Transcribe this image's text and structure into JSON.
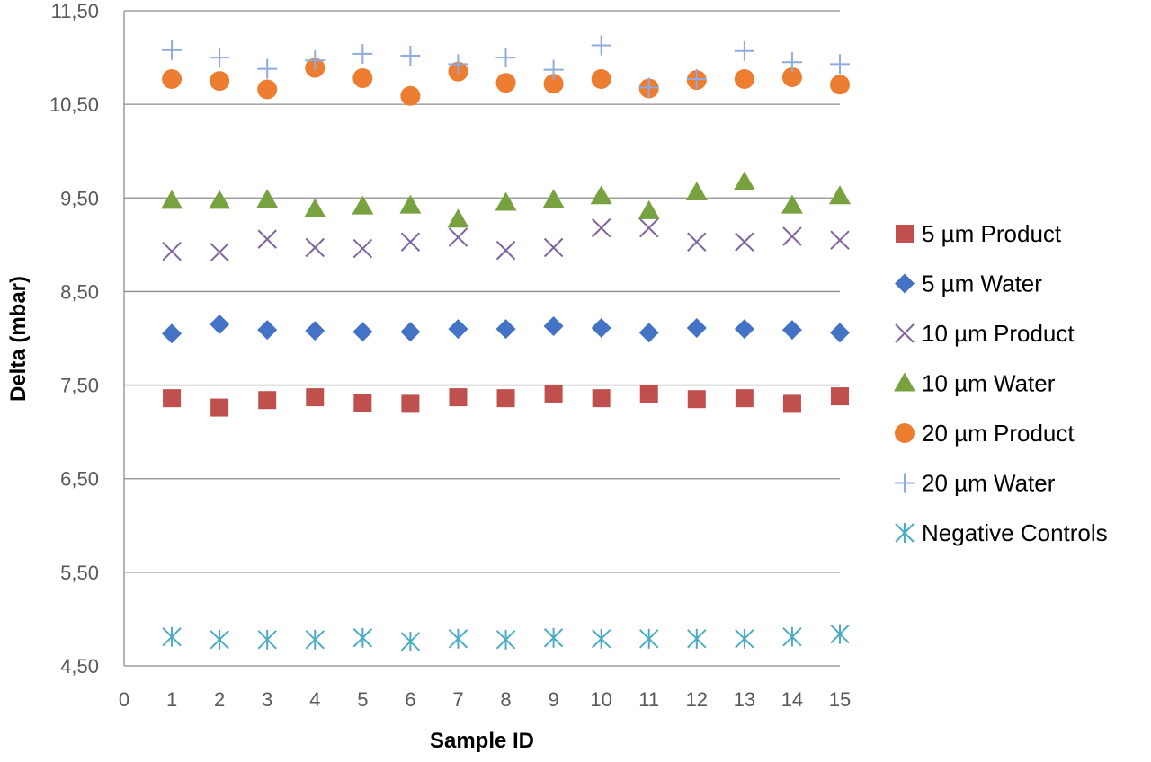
{
  "chart_data": {
    "type": "scatter",
    "title": "",
    "xlabel": "Sample ID",
    "ylabel": "Delta (mbar)",
    "xlim": [
      0,
      15
    ],
    "ylim": [
      4.5,
      11.5
    ],
    "x_ticks": [
      0,
      1,
      2,
      3,
      4,
      5,
      6,
      7,
      8,
      9,
      10,
      11,
      12,
      13,
      14,
      15
    ],
    "x_tick_labels": [
      "0",
      "1",
      "2",
      "3",
      "4",
      "5",
      "6",
      "7",
      "8",
      "9",
      "10",
      "11",
      "12",
      "13",
      "14",
      "15"
    ],
    "y_ticks": [
      4.5,
      5.5,
      6.5,
      7.5,
      8.5,
      9.5,
      10.5,
      11.5
    ],
    "y_tick_labels": [
      "4,50",
      "5,50",
      "6,50",
      "7,50",
      "8,50",
      "9,50",
      "10,50",
      "11,50"
    ],
    "grid": "horizontal",
    "legend_position": "right",
    "x": [
      1,
      2,
      3,
      4,
      5,
      6,
      7,
      8,
      9,
      10,
      11,
      12,
      13,
      14,
      15
    ],
    "series": [
      {
        "name": "5 µm Product",
        "marker": "square",
        "color": "#c0504d",
        "values": [
          7.36,
          7.26,
          7.34,
          7.37,
          7.31,
          7.3,
          7.37,
          7.36,
          7.41,
          7.36,
          7.4,
          7.35,
          7.36,
          7.3,
          7.38
        ]
      },
      {
        "name": "5 µm Water",
        "marker": "diamond",
        "color": "#4472c4",
        "values": [
          8.05,
          8.15,
          8.09,
          8.08,
          8.07,
          8.07,
          8.1,
          8.1,
          8.13,
          8.11,
          8.06,
          8.11,
          8.1,
          8.09,
          8.06
        ]
      },
      {
        "name": "10 µm Product",
        "marker": "x",
        "color": "#8064a2",
        "values": [
          8.93,
          8.92,
          9.06,
          8.97,
          8.96,
          9.03,
          9.08,
          8.94,
          8.97,
          9.18,
          9.18,
          9.03,
          9.03,
          9.09,
          9.05
        ]
      },
      {
        "name": "10 µm Water",
        "marker": "triangle",
        "color": "#77a23f",
        "values": [
          9.47,
          9.47,
          9.48,
          9.38,
          9.41,
          9.42,
          9.27,
          9.45,
          9.48,
          9.52,
          9.36,
          9.56,
          9.67,
          9.42,
          9.52
        ]
      },
      {
        "name": "20 µm Product",
        "marker": "circle",
        "color": "#ed7d31",
        "values": [
          10.77,
          10.75,
          10.66,
          10.89,
          10.78,
          10.59,
          10.85,
          10.73,
          10.72,
          10.77,
          10.67,
          10.76,
          10.77,
          10.79,
          10.71
        ]
      },
      {
        "name": "20 µm Water",
        "marker": "plus",
        "color": "#8faadc",
        "values": [
          11.08,
          11.0,
          10.88,
          10.97,
          11.04,
          11.02,
          10.93,
          11.0,
          10.87,
          11.13,
          10.68,
          10.77,
          11.07,
          10.95,
          10.93
        ]
      },
      {
        "name": "Negative Controls",
        "marker": "asterisk",
        "color": "#4bacc6",
        "values": [
          4.81,
          4.78,
          4.78,
          4.78,
          4.8,
          4.76,
          4.79,
          4.78,
          4.8,
          4.79,
          4.79,
          4.79,
          4.79,
          4.81,
          4.84
        ]
      }
    ]
  }
}
